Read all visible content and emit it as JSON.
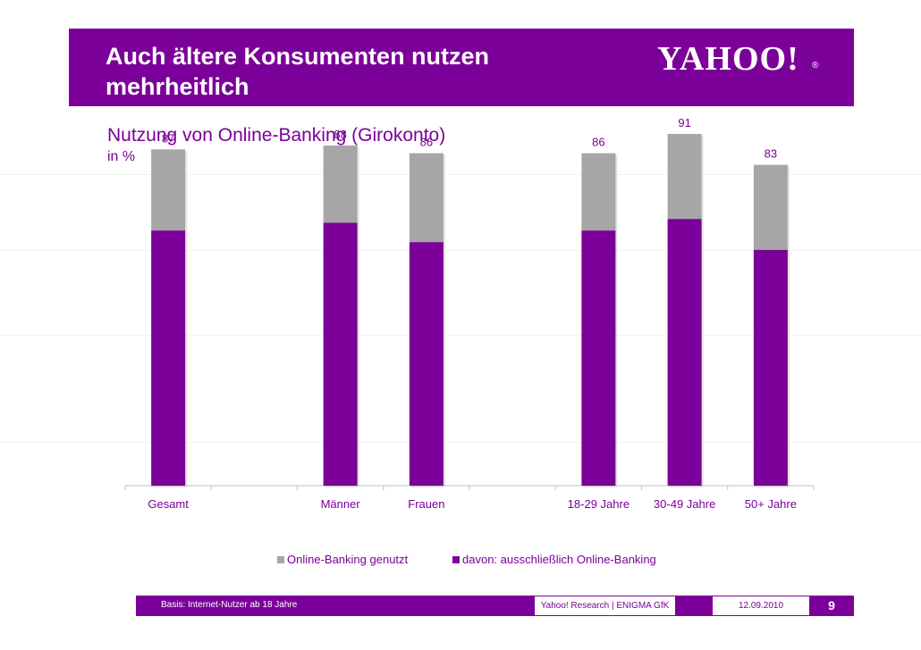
{
  "slide": {
    "title": "Auch ältere Konsumenten nutzen mehrheitlich",
    "logo_text": "YAHOO!",
    "logo_reg": "®",
    "page_number": "9"
  },
  "footer": {
    "basis": "Basis: Internet-Nutzer ab 18 Jahre",
    "source": "Yahoo! Research | ENIGMA GfK",
    "date": "12.09.2010"
  },
  "colors": {
    "primary": "#7b0099",
    "gray": "#a6a6a6"
  },
  "chart_data": {
    "type": "bar",
    "title": "Nutzung von Online-Banking (Girokonto)",
    "subtitle": "in %",
    "categories": [
      "Gesamt",
      "",
      "Männer",
      "Frauen",
      "",
      "18-29 Jahre",
      "30-49 Jahre",
      "50+ Jahre"
    ],
    "series": [
      {
        "name": "Online-Banking genutzt",
        "values": [
          87,
          null,
          88,
          86,
          null,
          86,
          91,
          83
        ],
        "color": "#a6a6a6"
      },
      {
        "name": "davon: ausschließlich Online-Banking",
        "values": [
          66,
          null,
          68,
          63,
          null,
          66,
          69,
          61
        ],
        "color": "#7b0099"
      }
    ],
    "ylim": [
      0,
      100
    ],
    "grid": false,
    "legend_position": "bottom"
  }
}
